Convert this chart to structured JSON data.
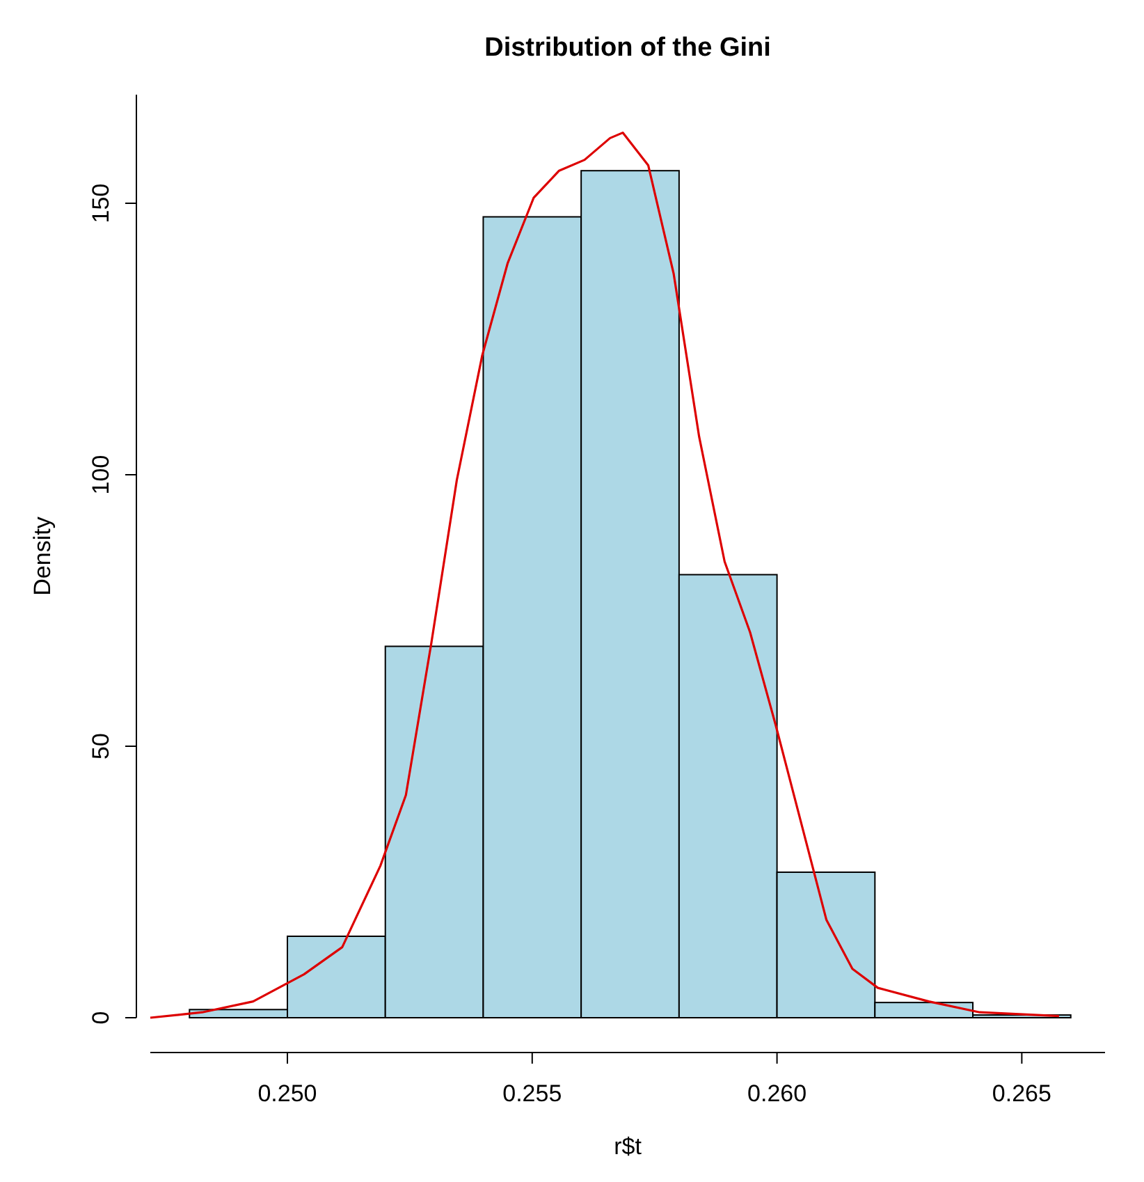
{
  "chart_data": {
    "type": "histogram",
    "title": "Distribution of the Gini",
    "xlabel": "r$t",
    "ylabel": "Density",
    "bins": [
      0.248,
      0.25,
      0.252,
      0.254,
      0.256,
      0.258,
      0.26,
      0.262,
      0.264,
      0.266
    ],
    "values": [
      1.5,
      15,
      68.4,
      147.5,
      156,
      81.6,
      26.8,
      2.8,
      0.5
    ],
    "color": "#add8e6",
    "series": [
      {
        "type": "line",
        "color": "#dd0000",
        "x": [
          0.2472,
          0.24826,
          0.2493,
          0.25034,
          0.25112,
          0.2519,
          0.25242,
          0.25294,
          0.25346,
          0.25398,
          0.2545,
          0.25503,
          0.25555,
          0.25607,
          0.25659,
          0.25685,
          0.25737,
          0.25789,
          0.25841,
          0.25893,
          0.25945,
          0.25997,
          0.26049,
          0.26101,
          0.26154,
          0.26206,
          0.2631,
          0.26414,
          0.26576
        ],
        "values": [
          0,
          1,
          3,
          8,
          13,
          28,
          41,
          69,
          99,
          122,
          139,
          151,
          156,
          158,
          162,
          163,
          157,
          137,
          107,
          84,
          71,
          54,
          36,
          18,
          9,
          5.5,
          3,
          1,
          0.3
        ]
      }
    ],
    "xlim": [
      0.2472,
      0.2667
    ],
    "ylim": [
      0,
      170
    ],
    "xticks": [
      {
        "value": 0.25,
        "label": "0.250"
      },
      {
        "value": 0.255,
        "label": "0.255"
      },
      {
        "value": 0.26,
        "label": "0.260"
      },
      {
        "value": 0.265,
        "label": "0.265"
      }
    ],
    "yticks": [
      0,
      50,
      100,
      150
    ],
    "grid": false
  }
}
